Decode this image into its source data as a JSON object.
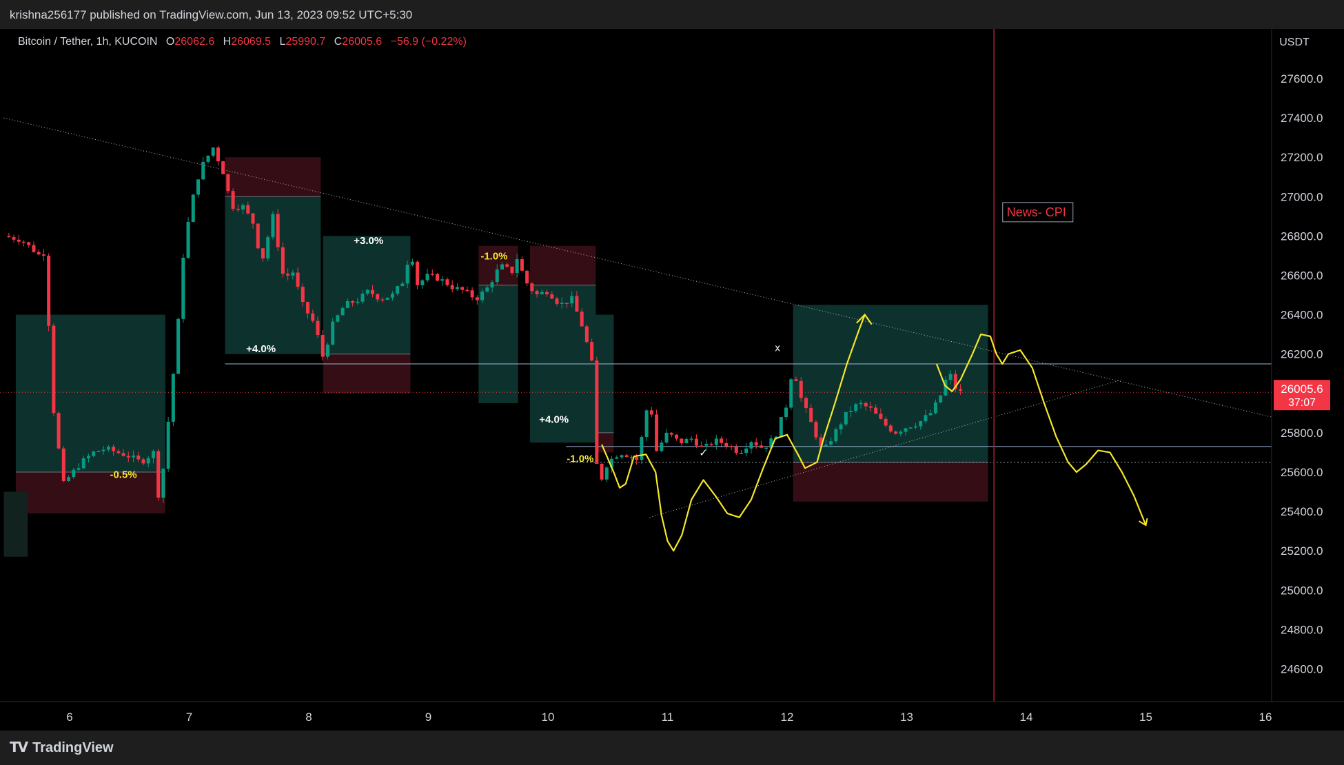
{
  "publisher_line": "krishna256177 published on TradingView.com, Jun 13, 2023 09:52 UTC+5:30",
  "legend": {
    "symbol": "Bitcoin / Tether, 1h, KUCOIN",
    "open_label": "O",
    "open": "26062.6",
    "high_label": "H",
    "high": "26069.5",
    "low_label": "L",
    "low": "25990.7",
    "close_label": "C",
    "close": "26005.6",
    "change": "−56.9 (−0.22%)"
  },
  "price_axis": {
    "currency": "USDT",
    "ticks": [
      "27600.0",
      "27400.0",
      "27200.0",
      "27000.0",
      "26800.0",
      "26600.0",
      "26400.0",
      "26200.0",
      "25800.0",
      "25600.0",
      "25400.0",
      "25200.0",
      "25000.0",
      "24800.0",
      "24600.0"
    ],
    "last_price": "26005.6",
    "countdown": "37:07"
  },
  "time_axis": {
    "ticks": [
      "6",
      "7",
      "8",
      "9",
      "10",
      "11",
      "12",
      "13",
      "14",
      "15",
      "16"
    ]
  },
  "annotations": {
    "news_label": "News- CPI",
    "trade_labels": [
      "-0.5%",
      "+4.0%",
      "+3.0%",
      "-1.0%",
      "+4.0%",
      "-1.0%"
    ],
    "x_mark": "x",
    "check_mark": "✓"
  },
  "brand": "TradingView",
  "colors": {
    "bull": "#089981",
    "bear": "#f23645",
    "drawing": "#f5e72b",
    "news_line": "#a8203a",
    "profit_zone": "#0f3b35",
    "loss_zone": "#3a1016"
  },
  "chart_data": {
    "type": "candlestick",
    "title": "Bitcoin / Tether, 1h, KUCOIN",
    "ylabel": "USDT",
    "ylim": [
      24400,
      27800
    ],
    "x_day_range": [
      5.5,
      16.1
    ],
    "last_price": 26005.6,
    "trendlines": [
      {
        "name": "descending resistance",
        "from": [
          5.45,
          27400
        ],
        "to": [
          16.05,
          25880
        ]
      },
      {
        "name": "ascending support",
        "from": [
          10.85,
          25370
        ],
        "to": [
          14.8,
          26070
        ]
      }
    ],
    "horizontal_levels": [
      26150,
      25730,
      25650
    ],
    "news_event_day": 13.73,
    "price_path": [
      [
        5.45,
        26800
      ],
      [
        5.6,
        26780
      ],
      [
        5.75,
        26700
      ],
      [
        5.8,
        26720
      ],
      [
        5.85,
        25990
      ],
      [
        5.9,
        25750
      ],
      [
        5.95,
        25540
      ],
      [
        6.0,
        25580
      ],
      [
        6.1,
        25650
      ],
      [
        6.2,
        25700
      ],
      [
        6.3,
        25720
      ],
      [
        6.4,
        25700
      ],
      [
        6.5,
        25680
      ],
      [
        6.6,
        25650
      ],
      [
        6.7,
        25700
      ],
      [
        6.72,
        25420
      ],
      [
        6.78,
        25600
      ],
      [
        6.85,
        26000
      ],
      [
        6.9,
        26300
      ],
      [
        6.95,
        26700
      ],
      [
        7.0,
        26900
      ],
      [
        7.05,
        27050
      ],
      [
        7.1,
        27150
      ],
      [
        7.15,
        27200
      ],
      [
        7.2,
        27250
      ],
      [
        7.3,
        27100
      ],
      [
        7.35,
        26950
      ],
      [
        7.45,
        26950
      ],
      [
        7.55,
        26850
      ],
      [
        7.6,
        26650
      ],
      [
        7.7,
        26900
      ],
      [
        7.8,
        26550
      ],
      [
        7.85,
        26650
      ],
      [
        7.95,
        26450
      ],
      [
        8.05,
        26350
      ],
      [
        8.12,
        26180
      ],
      [
        8.2,
        26350
      ],
      [
        8.3,
        26450
      ],
      [
        8.4,
        26470
      ],
      [
        8.5,
        26520
      ],
      [
        8.6,
        26480
      ],
      [
        8.7,
        26500
      ],
      [
        8.8,
        26580
      ],
      [
        8.85,
        26750
      ],
      [
        8.9,
        26550
      ],
      [
        9.0,
        26600
      ],
      [
        9.1,
        26580
      ],
      [
        9.2,
        26540
      ],
      [
        9.3,
        26520
      ],
      [
        9.4,
        26480
      ],
      [
        9.5,
        26540
      ],
      [
        9.6,
        26650
      ],
      [
        9.7,
        26620
      ],
      [
        9.75,
        26700
      ],
      [
        9.8,
        26580
      ],
      [
        9.9,
        26500
      ],
      [
        10.0,
        26520
      ],
      [
        10.1,
        26450
      ],
      [
        10.2,
        26480
      ],
      [
        10.3,
        26320
      ],
      [
        10.38,
        26120
      ],
      [
        10.4,
        25650
      ],
      [
        10.45,
        25570
      ],
      [
        10.5,
        25650
      ],
      [
        10.6,
        25700
      ],
      [
        10.7,
        25680
      ],
      [
        10.75,
        25660
      ],
      [
        10.85,
        26000
      ],
      [
        10.9,
        25700
      ],
      [
        11.0,
        25800
      ],
      [
        11.1,
        25750
      ],
      [
        11.2,
        25770
      ],
      [
        11.3,
        25720
      ],
      [
        11.4,
        25760
      ],
      [
        11.5,
        25740
      ],
      [
        11.6,
        25700
      ],
      [
        11.7,
        25760
      ],
      [
        11.8,
        25720
      ],
      [
        11.9,
        25780
      ],
      [
        12.0,
        25950
      ],
      [
        12.05,
        26150
      ],
      [
        12.1,
        26000
      ],
      [
        12.2,
        25850
      ],
      [
        12.3,
        25700
      ],
      [
        12.4,
        25800
      ],
      [
        12.5,
        25900
      ],
      [
        12.6,
        25950
      ],
      [
        12.7,
        25920
      ],
      [
        12.8,
        25850
      ],
      [
        12.9,
        25800
      ],
      [
        13.0,
        25830
      ],
      [
        13.1,
        25850
      ],
      [
        13.2,
        25900
      ],
      [
        13.25,
        25950
      ],
      [
        13.3,
        26010
      ],
      [
        13.35,
        26120
      ],
      [
        13.4,
        26030
      ],
      [
        13.45,
        26005.6
      ]
    ],
    "projection_path": [
      [
        10.45,
        25740
      ],
      [
        10.55,
        25600
      ],
      [
        10.6,
        25520
      ],
      [
        10.65,
        25540
      ],
      [
        10.72,
        25680
      ],
      [
        10.82,
        25690
      ],
      [
        10.9,
        25600
      ],
      [
        10.95,
        25380
      ],
      [
        11.0,
        25250
      ],
      [
        11.05,
        25200
      ],
      [
        11.12,
        25280
      ],
      [
        11.2,
        25460
      ],
      [
        11.3,
        25560
      ],
      [
        11.4,
        25480
      ],
      [
        11.5,
        25390
      ],
      [
        11.6,
        25370
      ],
      [
        11.7,
        25460
      ],
      [
        11.8,
        25620
      ],
      [
        11.9,
        25770
      ],
      [
        12.0,
        25790
      ],
      [
        12.1,
        25680
      ],
      [
        12.15,
        25620
      ],
      [
        12.25,
        25650
      ],
      [
        12.3,
        25760
      ],
      [
        12.4,
        25950
      ],
      [
        12.5,
        26150
      ],
      [
        12.6,
        26320
      ],
      [
        12.65,
        26400
      ]
    ],
    "forecast_path": [
      [
        13.25,
        26150
      ],
      [
        13.32,
        26040
      ],
      [
        13.38,
        26010
      ],
      [
        13.45,
        26070
      ],
      [
        13.55,
        26200
      ],
      [
        13.62,
        26300
      ],
      [
        13.7,
        26290
      ],
      [
        13.75,
        26200
      ],
      [
        13.8,
        26150
      ],
      [
        13.85,
        26200
      ],
      [
        13.95,
        26220
      ],
      [
        14.05,
        26130
      ],
      [
        14.15,
        25950
      ],
      [
        14.25,
        25780
      ],
      [
        14.35,
        25650
      ],
      [
        14.42,
        25600
      ],
      [
        14.5,
        25640
      ],
      [
        14.6,
        25710
      ],
      [
        14.7,
        25700
      ],
      [
        14.8,
        25600
      ],
      [
        14.9,
        25480
      ],
      [
        15.0,
        25330
      ]
    ],
    "position_boxes": [
      {
        "type": "short",
        "from": 5.55,
        "to": 6.8,
        "entry": 25600,
        "stop": 25390,
        "target": 26400
      },
      {
        "type": "short",
        "from": 7.3,
        "to": 8.1,
        "entry": 27000,
        "stop": 27200,
        "target": 26200
      },
      {
        "type": "long",
        "from": 8.12,
        "to": 8.85,
        "entry": 26200,
        "stop": 26000,
        "target": 26800
      },
      {
        "type": "short",
        "from": 9.42,
        "to": 9.75,
        "entry": 26550,
        "stop": 26750,
        "target": 25950
      },
      {
        "type": "short",
        "from": 9.85,
        "to": 10.4,
        "entry": 26550,
        "stop": 26750,
        "target": 25750
      },
      {
        "type": "long",
        "from": 10.4,
        "to": 10.55,
        "entry": 25800,
        "stop": 25700,
        "target": 26400
      },
      {
        "type": "long",
        "from": 12.05,
        "to": 13.68,
        "entry": 25650,
        "stop": 25450,
        "target": 26450
      },
      {
        "type": "stub",
        "from": 5.45,
        "to": 5.65,
        "entry": 25500,
        "stop": 25500,
        "target": 25170
      }
    ]
  }
}
